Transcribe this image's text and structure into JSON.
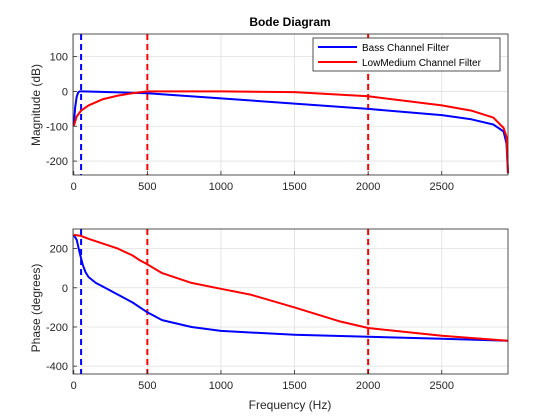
{
  "chart_data": [
    {
      "type": "line",
      "title": "Bode Diagram",
      "xlabel": "",
      "ylabel": "Magnitude (dB)",
      "xlim": [
        -5,
        2950
      ],
      "ylim": [
        -240,
        165
      ],
      "xticks": [
        0,
        500,
        1000,
        1500,
        2000,
        2500
      ],
      "yticks": [
        100,
        0,
        -100,
        -200
      ],
      "grid": true,
      "legend_position": "top-right",
      "legend": [
        "Bass Channel Filter",
        "LowMedium Channel Filter"
      ],
      "series": [
        {
          "name": "Bass Channel Filter",
          "color": "#0000ff",
          "x": [
            0,
            5,
            10,
            20,
            30,
            40,
            50,
            60,
            500,
            1000,
            1500,
            2000,
            2500,
            2700,
            2850,
            2920,
            2940,
            2950
          ],
          "y": [
            -95,
            -70,
            -45,
            -15,
            -3,
            0,
            0,
            0,
            -5,
            -20,
            -35,
            -50,
            -68,
            -80,
            -95,
            -115,
            -150,
            -235
          ]
        },
        {
          "name": "LowMedium Channel Filter",
          "color": "#ff0000",
          "x": [
            0,
            20,
            50,
            100,
            200,
            300,
            400,
            500,
            600,
            1000,
            1500,
            2000,
            2500,
            2700,
            2850,
            2920,
            2940,
            2950
          ],
          "y": [
            -100,
            -72,
            -55,
            -40,
            -22,
            -12,
            -5,
            0,
            0,
            0,
            -2,
            -14,
            -40,
            -55,
            -75,
            -105,
            -130,
            -235
          ]
        }
      ],
      "markers": [
        {
          "x": 50,
          "color": "#0000ff"
        },
        {
          "x": 500,
          "color": "#ff0000"
        },
        {
          "x": 2000,
          "color": "#ff0000"
        }
      ]
    },
    {
      "type": "line",
      "title": "",
      "xlabel": "Frequency (Hz)",
      "ylabel": "Phase (degrees)",
      "xlim": [
        -5,
        2950
      ],
      "ylim": [
        -440,
        300
      ],
      "xticks": [
        0,
        500,
        1000,
        1500,
        2000,
        2500
      ],
      "yticks": [
        200,
        0,
        -200,
        -400
      ],
      "grid": true,
      "series": [
        {
          "name": "Bass Channel Filter",
          "color": "#0000ff",
          "x": [
            0,
            20,
            40,
            50,
            60,
            80,
            100,
            150,
            200,
            300,
            400,
            500,
            600,
            800,
            1000,
            1500,
            2000,
            2500,
            2950
          ],
          "y": [
            270,
            245,
            180,
            150,
            120,
            80,
            55,
            25,
            5,
            -35,
            -75,
            -125,
            -165,
            -200,
            -220,
            -240,
            -250,
            -260,
            -270
          ]
        },
        {
          "name": "LowMedium Channel Filter",
          "color": "#ff0000",
          "x": [
            0,
            50,
            100,
            200,
            300,
            400,
            450,
            500,
            600,
            800,
            1000,
            1200,
            1500,
            1800,
            2000,
            2500,
            2950
          ],
          "y": [
            270,
            265,
            250,
            225,
            200,
            165,
            140,
            120,
            75,
            25,
            -5,
            -35,
            -100,
            -170,
            -205,
            -245,
            -270
          ]
        }
      ],
      "markers": [
        {
          "x": 50,
          "color": "#0000ff"
        },
        {
          "x": 500,
          "color": "#ff0000"
        },
        {
          "x": 2000,
          "color": "#ff0000"
        }
      ]
    }
  ]
}
